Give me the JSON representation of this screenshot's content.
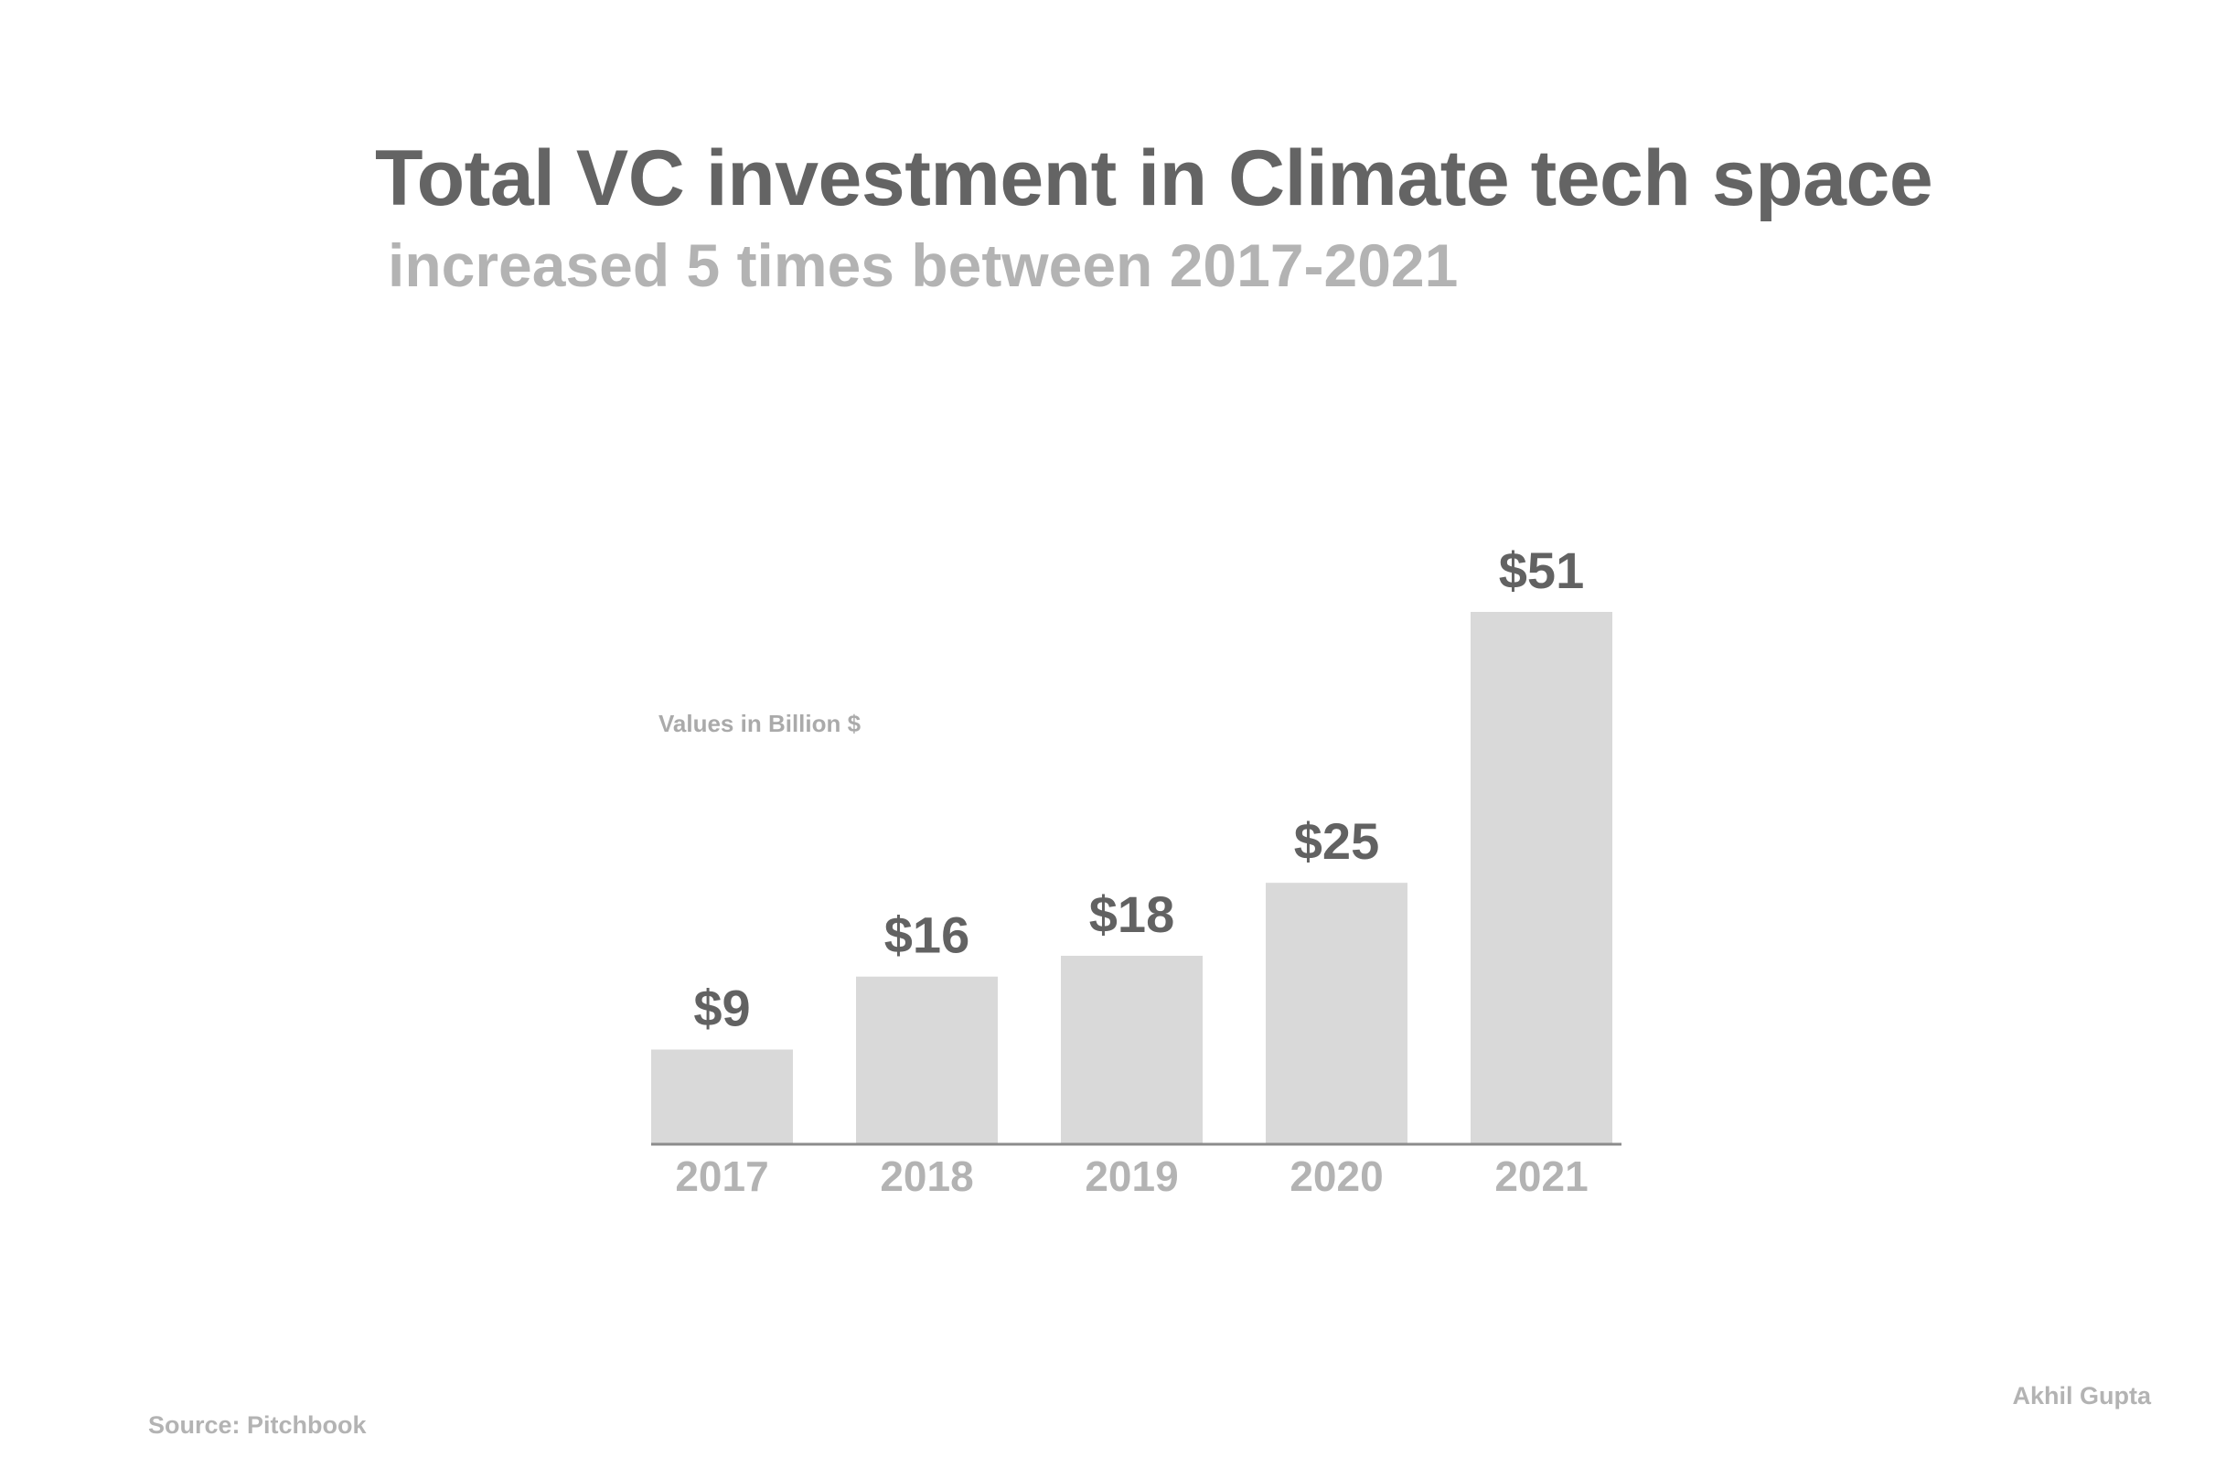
{
  "title": "Total VC investment in Climate tech space",
  "subtitle": "increased 5 times between 2017-2021",
  "note": "Values in Billion $",
  "source": "Source: Pitchbook",
  "author": "Akhil Gupta",
  "colors": {
    "bar": "#d9d9d9",
    "title": "#646464",
    "muted": "#b3b3b3",
    "axis": "#8c8c8c"
  },
  "chart_data": {
    "type": "bar",
    "title": "Total VC investment in Climate tech space",
    "subtitle": "increased 5 times between 2017-2021",
    "categories": [
      "2017",
      "2018",
      "2019",
      "2020",
      "2021"
    ],
    "values": [
      9,
      16,
      18,
      25,
      51
    ],
    "value_labels": [
      "$9",
      "$16",
      "$18",
      "$25",
      "$51"
    ],
    "xlabel": "",
    "ylabel": "",
    "ylim": [
      0,
      51
    ],
    "grid": false,
    "legend": "none"
  }
}
